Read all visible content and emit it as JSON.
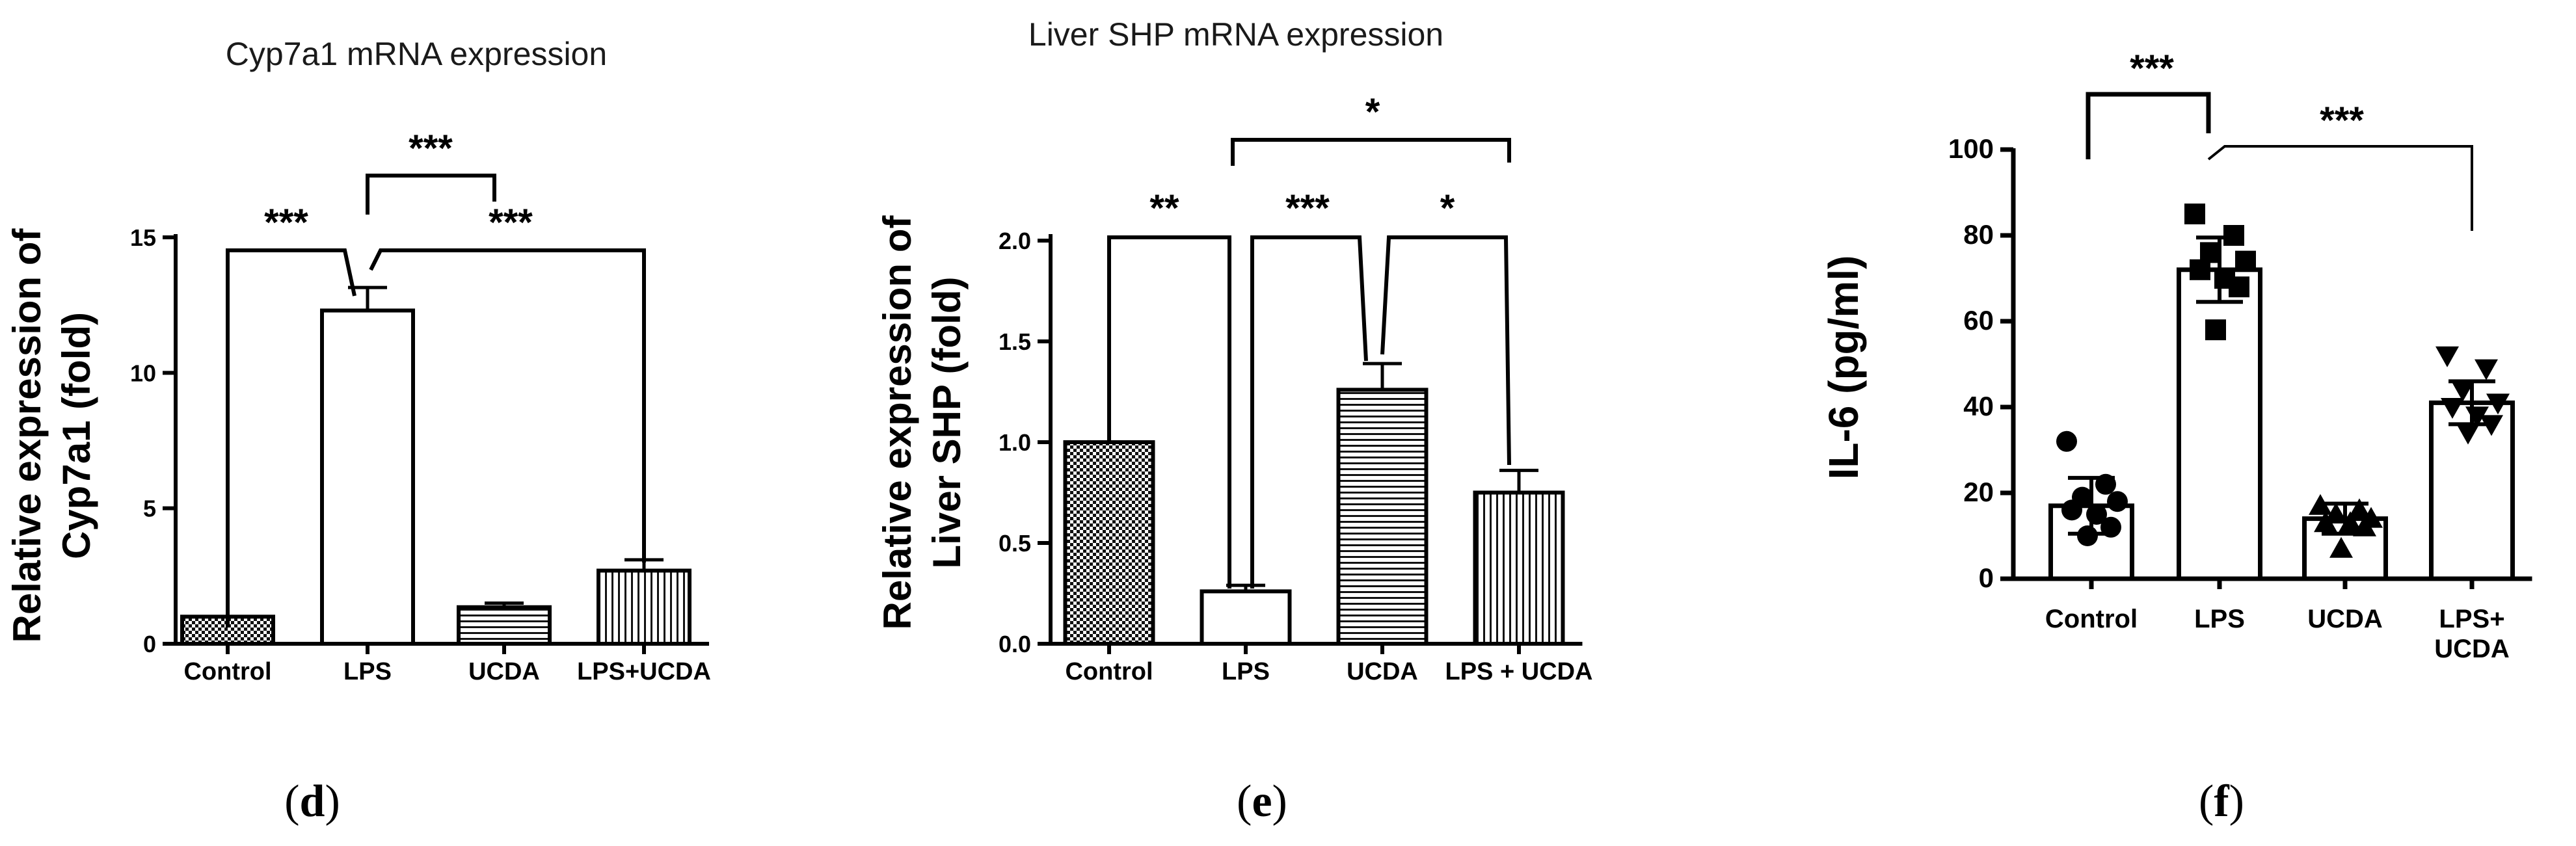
{
  "chart_data": [
    {
      "type": "bar",
      "panel": "d",
      "title": "Cyp7a1 mRNA expression",
      "ylabel_lines": [
        "Relative expression of",
        "Cyp7a1 (fold)"
      ],
      "xlabel": "",
      "ylim": [
        0,
        15
      ],
      "yticks": [
        0,
        5,
        10,
        15
      ],
      "ytick_labels": [
        "0",
        "5",
        "10",
        "15"
      ],
      "categories": [
        "Control",
        "LPS",
        "UCDA",
        "LPS+UCDA"
      ],
      "values": [
        1.0,
        12.3,
        1.35,
        2.7
      ],
      "errors": [
        0,
        0.85,
        0.15,
        0.4
      ],
      "patterns": [
        "checker",
        "none",
        "hlines",
        "vlines"
      ],
      "significance": [
        {
          "from": 0,
          "to": 1,
          "label": "***"
        },
        {
          "from": 1,
          "to": 2,
          "label": "***"
        },
        {
          "from": 1,
          "to": 3,
          "label": "***"
        }
      ]
    },
    {
      "type": "bar",
      "panel": "e",
      "title": "Liver SHP mRNA expression",
      "ylabel_lines": [
        "Relative expression of",
        "Liver SHP (fold)"
      ],
      "xlabel": "",
      "ylim": [
        0,
        2.0
      ],
      "yticks": [
        0,
        0.5,
        1.0,
        1.5,
        2.0
      ],
      "ytick_labels": [
        "0.0",
        "0.5",
        "1.0",
        "1.5",
        "2.0"
      ],
      "categories": [
        "Control",
        "LPS",
        "UCDA",
        "LPS + UCDA"
      ],
      "values": [
        1.0,
        0.26,
        1.26,
        0.75
      ],
      "errors": [
        0,
        0.03,
        0.13,
        0.11
      ],
      "patterns": [
        "checker",
        "none",
        "hlines",
        "vlines"
      ],
      "significance": [
        {
          "from": 0,
          "to": 1,
          "label": "**"
        },
        {
          "from": 1,
          "to": 2,
          "label": "***"
        },
        {
          "from": 2,
          "to": 3,
          "label": "*"
        },
        {
          "from": 1,
          "to": 3,
          "label": "*"
        }
      ]
    },
    {
      "type": "bar",
      "panel": "f",
      "title": "",
      "ylabel_lines": [
        "IL-6 (pg/ml)"
      ],
      "xlabel": "",
      "ylim": [
        0,
        100
      ],
      "yticks": [
        0,
        20,
        40,
        60,
        80,
        100
      ],
      "ytick_labels": [
        "0",
        "20",
        "40",
        "60",
        "80",
        "100"
      ],
      "categories": [
        "Control",
        "LPS",
        "UCDA",
        "LPS+ UCDA"
      ],
      "category_lines": [
        [
          "Control"
        ],
        [
          "LPS"
        ],
        [
          "UCDA"
        ],
        [
          "LPS+",
          "UCDA"
        ]
      ],
      "values": [
        17,
        72,
        14,
        41
      ],
      "errors": [
        6.5,
        7.5,
        3.5,
        5
      ],
      "markers": [
        "circle",
        "square",
        "triangle-up",
        "triangle-down"
      ],
      "points": [
        [
          32,
          22,
          19,
          18,
          16,
          15,
          12,
          10
        ],
        [
          85,
          80,
          76,
          74,
          72,
          70,
          68,
          58
        ],
        [
          17,
          16,
          15,
          14,
          13,
          13,
          12,
          7
        ],
        [
          52,
          49,
          44,
          41,
          40,
          38,
          36,
          34
        ]
      ],
      "significance": [
        {
          "from": 0,
          "to": 1,
          "label": "***"
        },
        {
          "from": 1,
          "to": 3,
          "label": "***"
        }
      ]
    }
  ],
  "panel_labels": {
    "d": {
      "open": "(",
      "letter": "d",
      "close": ")"
    },
    "e": {
      "open": "(",
      "letter": "e",
      "close": ")"
    },
    "f": {
      "open": "(",
      "letter": "f",
      "close": ")"
    }
  }
}
